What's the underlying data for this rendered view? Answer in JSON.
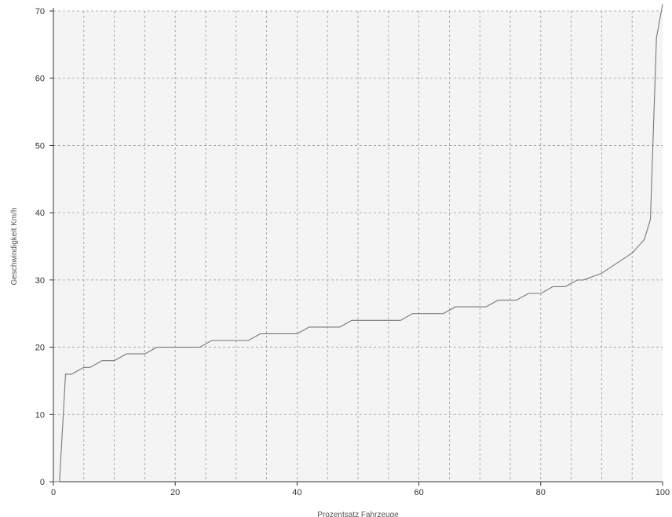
{
  "chart_data": {
    "type": "line",
    "title": "",
    "xlabel": "Prozentsatz Fahrzeuge",
    "ylabel": "Geschwindigkeit Km/h",
    "xlim": [
      0,
      100
    ],
    "ylim": [
      0,
      70
    ],
    "x_ticks": [
      0,
      20,
      40,
      60,
      80,
      100
    ],
    "x_tick_labels": [
      "0",
      "20",
      "40",
      "60",
      "80",
      "100"
    ],
    "y_ticks": [
      0,
      10,
      20,
      30,
      40,
      50,
      60,
      70
    ],
    "y_tick_labels": [
      "0",
      "10",
      "20",
      "30",
      "40",
      "50",
      "60",
      "70"
    ],
    "x_grid_step": 5,
    "y_grid_step": 10,
    "grid": true,
    "legend": "none",
    "colors": {
      "line": "#777777",
      "plot_bg": "#f4f4f4",
      "grid": "#9a9a9a",
      "axis": "#333333"
    },
    "series": [
      {
        "x": [
          0,
          1,
          2,
          3,
          5,
          6,
          8,
          10,
          12,
          15,
          17,
          20,
          24,
          26,
          30,
          32,
          34,
          38,
          40,
          42,
          47,
          49,
          54,
          57,
          59,
          64,
          66,
          71,
          73,
          76,
          78,
          80,
          82,
          84,
          86,
          87,
          90,
          95,
          97,
          98,
          99,
          100
        ],
        "y": [
          0,
          0,
          16,
          16,
          17,
          17,
          18,
          18,
          19,
          19,
          20,
          20,
          20,
          21,
          21,
          21,
          22,
          22,
          22,
          23,
          23,
          24,
          24,
          24,
          25,
          25,
          26,
          26,
          27,
          27,
          28,
          28,
          29,
          29,
          30,
          30,
          31,
          34,
          36,
          39,
          66,
          71
        ]
      }
    ]
  }
}
